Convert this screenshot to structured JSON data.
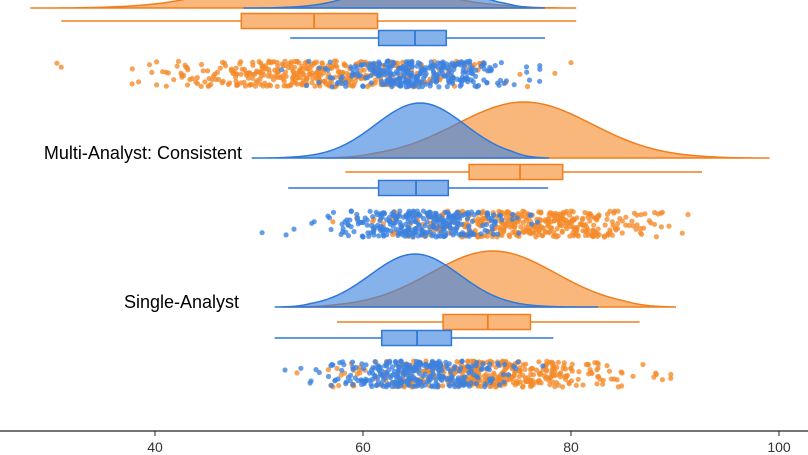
{
  "chart_data": {
    "type": "raincloud",
    "xlim": [
      27,
      101
    ],
    "x_ticks": [
      40,
      60,
      80,
      100
    ],
    "grid": false,
    "colors": {
      "blue": "#3b82e0",
      "orange": "#f58a2a"
    },
    "groups": [
      {
        "label": "",
        "series": {
          "orange": {
            "min": 31,
            "q1": 48.3,
            "median": 55.3,
            "q3": 61.4,
            "max": 80.5,
            "density_range": [
              28,
              80.5
            ],
            "peak": 56,
            "sd": 7.5
          },
          "blue": {
            "min": 53,
            "q1": 61.5,
            "median": 65,
            "q3": 68,
            "max": 77.5,
            "density_range": [
              48.5,
              77.5
            ],
            "peak": 65,
            "sd": 4.5
          }
        }
      },
      {
        "label": "Multi-Analyst: Consistent",
        "series": {
          "orange": {
            "min": 58.3,
            "q1": 70.2,
            "median": 75.1,
            "q3": 79.2,
            "max": 92.6,
            "density_range": [
              55.7,
              99.1
            ],
            "peak": 75.5,
            "sd": 6.5
          },
          "blue": {
            "min": 52.8,
            "q1": 61.5,
            "median": 65.1,
            "q3": 68.2,
            "max": 77.8,
            "density_range": [
              49.3,
              77.9
            ],
            "peak": 65.5,
            "sd": 4.3
          }
        }
      },
      {
        "label": "Single-Analyst",
        "series": {
          "orange": {
            "min": 57.5,
            "q1": 67.7,
            "median": 72.0,
            "q3": 76.1,
            "max": 86.6,
            "density_range": [
              52.3,
              90.1
            ],
            "peak": 72.5,
            "sd": 6.0
          },
          "blue": {
            "min": 51.5,
            "q1": 61.8,
            "median": 65.2,
            "q3": 68.5,
            "max": 78.3,
            "density_range": [
              51.5,
              82.6
            ],
            "peak": 65,
            "sd": 4.3
          }
        }
      }
    ]
  }
}
